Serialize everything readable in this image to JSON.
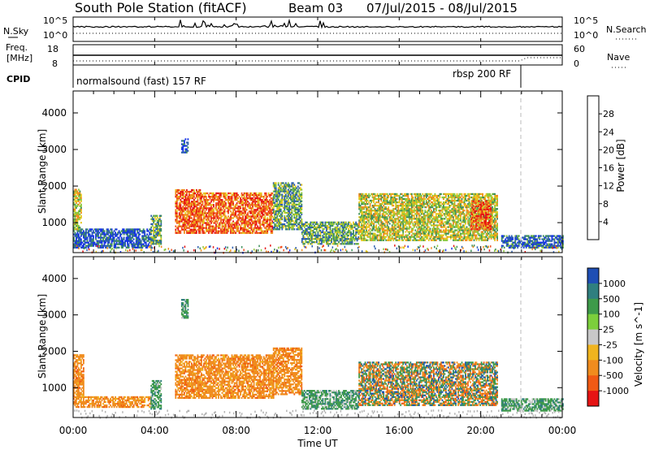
{
  "header": {
    "station": "South Pole Station (fitACF)",
    "beam": "Beam 03",
    "dates": "07/Jul/2015 - 08/Jul/2015"
  },
  "top_panels": {
    "nsky_label": "N.Sky",
    "nsky_ticks": [
      "10^5",
      "10^0"
    ],
    "nsearch_label": "N.Search",
    "nsearch_ticks": [
      "10^5",
      "10^0"
    ],
    "freq_label_1": "Freq.",
    "freq_label_2": "[MHz]",
    "freq_ticks": [
      "18",
      "8"
    ],
    "nave_label": "Nave",
    "nave_ticks": [
      "60",
      "0"
    ],
    "cpid_label": "CPID",
    "cpid_1": "normalsound (fast) 157 RF",
    "cpid_2": "rbsp 200 RF"
  },
  "time_axis": {
    "label": "Time UT",
    "ticks": [
      "00:00",
      "04:00",
      "08:00",
      "12:00",
      "16:00",
      "20:00",
      "00:00"
    ]
  },
  "chart_data": [
    {
      "type": "heatmap",
      "title": "",
      "xlabel": "Time UT",
      "ylabel": "Slant Range [km]",
      "xlim": [
        0,
        24
      ],
      "ylim": [
        180,
        4600
      ],
      "yticks": [
        "1000",
        "2000",
        "3000",
        "4000"
      ],
      "colorbar_label": "Power [dB]",
      "colorbar_ticks": [
        "4",
        "8",
        "12",
        "16",
        "20",
        "24",
        "28"
      ],
      "colorbar_range": [
        0,
        32
      ],
      "colors": [
        "#1432e6",
        "#2d5fb0",
        "#3f8f5a",
        "#8cc83c",
        "#e6c81e",
        "#f08c1e",
        "#f0501e",
        "#e61414"
      ],
      "regions": [
        {
          "t": [
            0.0,
            3.8
          ],
          "r": [
            300,
            800
          ],
          "level": 0.15
        },
        {
          "t": [
            0.0,
            0.4
          ],
          "r": [
            800,
            1900
          ],
          "level": 0.5
        },
        {
          "t": [
            3.8,
            4.3
          ],
          "r": [
            400,
            1200
          ],
          "level": 0.35
        },
        {
          "t": [
            5.0,
            6.2
          ],
          "r": [
            700,
            1900
          ],
          "level": 0.8
        },
        {
          "t": [
            6.2,
            9.8
          ],
          "r": [
            700,
            1800
          ],
          "level": 0.78
        },
        {
          "t": [
            5.3,
            5.6
          ],
          "r": [
            2900,
            3300
          ],
          "level": 0.15
        },
        {
          "t": [
            9.8,
            11.2
          ],
          "r": [
            800,
            2100
          ],
          "level": 0.35
        },
        {
          "t": [
            11.2,
            14.0
          ],
          "r": [
            400,
            1000
          ],
          "level": 0.35
        },
        {
          "t": [
            14.0,
            20.8
          ],
          "r": [
            500,
            1800
          ],
          "level": 0.5
        },
        {
          "t": [
            19.5,
            20.5
          ],
          "r": [
            800,
            1600
          ],
          "level": 0.8
        },
        {
          "t": [
            21.0,
            24.0
          ],
          "r": [
            300,
            650
          ],
          "level": 0.2
        }
      ]
    },
    {
      "type": "heatmap",
      "title": "",
      "xlabel": "Time UT",
      "ylabel": "Slant Range [km]",
      "xlim": [
        0,
        24
      ],
      "ylim": [
        180,
        4600
      ],
      "yticks": [
        "1000",
        "2000",
        "3000",
        "4000"
      ],
      "colorbar_label": "Velocity [m s^-1]",
      "colorbar_ticks": [
        "1000",
        "500",
        "100",
        "25",
        "-25",
        "-100",
        "-500",
        "-1000"
      ],
      "colors": [
        "#1e4eb4",
        "#2f7f7f",
        "#3e9a4a",
        "#7ccf3c",
        "#c8c8c8",
        "#f0b41e",
        "#f08c1e",
        "#f05a14",
        "#e61414"
      ],
      "regions": [
        {
          "t": [
            0.0,
            3.8
          ],
          "r": [
            450,
            750
          ],
          "level": "orange"
        },
        {
          "t": [
            0.0,
            0.5
          ],
          "r": [
            750,
            1900
          ],
          "level": "orange"
        },
        {
          "t": [
            3.8,
            4.3
          ],
          "r": [
            400,
            1200
          ],
          "level": "green"
        },
        {
          "t": [
            5.0,
            9.8
          ],
          "r": [
            700,
            1900
          ],
          "level": "orange"
        },
        {
          "t": [
            5.3,
            5.6
          ],
          "r": [
            2900,
            3400
          ],
          "level": "green"
        },
        {
          "t": [
            9.8,
            11.2
          ],
          "r": [
            800,
            2100
          ],
          "level": "orange"
        },
        {
          "t": [
            11.2,
            14.0
          ],
          "r": [
            400,
            900
          ],
          "level": "green"
        },
        {
          "t": [
            14.0,
            20.8
          ],
          "r": [
            500,
            1700
          ],
          "level": "mix"
        },
        {
          "t": [
            21.0,
            24.0
          ],
          "r": [
            350,
            700
          ],
          "level": "green"
        }
      ]
    }
  ]
}
